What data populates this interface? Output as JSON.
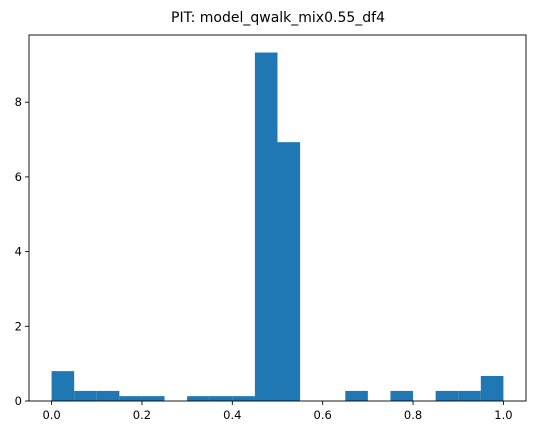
{
  "chart_data": {
    "type": "bar",
    "title": "PIT: model_qwalk_mix0.55_df4",
    "xlabel": "",
    "ylabel": "",
    "bin_edges": [
      0.0,
      0.05,
      0.1,
      0.15,
      0.2,
      0.25,
      0.3,
      0.35,
      0.4,
      0.45,
      0.5,
      0.55,
      0.6,
      0.65,
      0.7,
      0.75,
      0.8,
      0.85,
      0.9,
      0.95,
      1.0
    ],
    "values": [
      0.8,
      0.27,
      0.27,
      0.13,
      0.13,
      0.0,
      0.13,
      0.13,
      0.13,
      9.33,
      6.93,
      0.0,
      0.0,
      0.27,
      0.0,
      0.27,
      0.0,
      0.27,
      0.27,
      0.67
    ],
    "xlim": [
      -0.05,
      1.05
    ],
    "ylim": [
      0,
      9.8
    ],
    "xticks": [
      "0.0",
      "0.2",
      "0.4",
      "0.6",
      "0.8",
      "1.0"
    ],
    "yticks": [
      "0",
      "2",
      "4",
      "6",
      "8"
    ],
    "grid": false,
    "bar_color": "#1f77b4"
  }
}
